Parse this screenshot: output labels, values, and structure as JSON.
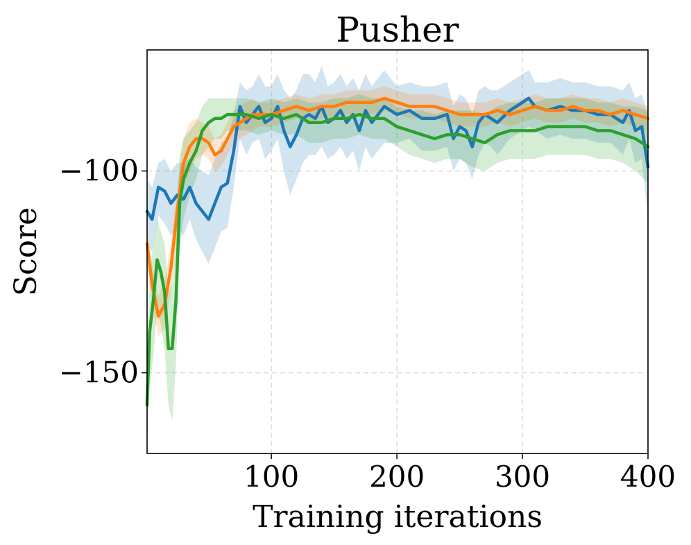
{
  "chart_data": {
    "type": "line",
    "title": "Pusher",
    "xlabel": "Training iterations",
    "ylabel": "Score",
    "xlim": [
      1,
      400
    ],
    "ylim": [
      -170,
      -70
    ],
    "xticks": [
      100,
      200,
      300,
      400
    ],
    "xtick_labels": [
      "100",
      "200",
      "300",
      "400"
    ],
    "yticks": [
      -100,
      -150
    ],
    "ytick_labels": [
      "−100",
      "−150"
    ],
    "grid": true,
    "legend": "none",
    "series": [
      {
        "name": "blue",
        "color": "#1f77b4",
        "x": [
          1,
          5,
          10,
          15,
          20,
          25,
          30,
          35,
          40,
          45,
          50,
          55,
          60,
          65,
          70,
          75,
          80,
          85,
          90,
          95,
          100,
          105,
          110,
          115,
          120,
          125,
          130,
          135,
          140,
          145,
          150,
          155,
          160,
          165,
          170,
          175,
          180,
          185,
          190,
          195,
          200,
          210,
          220,
          230,
          240,
          245,
          250,
          255,
          260,
          265,
          270,
          275,
          280,
          290,
          300,
          305,
          310,
          320,
          330,
          340,
          350,
          360,
          370,
          380,
          385,
          390,
          395,
          400
        ],
        "y": [
          -110,
          -112,
          -104,
          -105,
          -108,
          -106,
          -107,
          -104,
          -108,
          -110,
          -112,
          -108,
          -104,
          -103,
          -95,
          -84,
          -88,
          -86,
          -84,
          -88,
          -87,
          -84,
          -90,
          -94,
          -91,
          -87,
          -86,
          -87,
          -84,
          -88,
          -87,
          -85,
          -88,
          -86,
          -90,
          -85,
          -88,
          -86,
          -84,
          -85,
          -86,
          -85,
          -87,
          -87,
          -86,
          -92,
          -89,
          -90,
          -94,
          -88,
          -86,
          -87,
          -88,
          -85,
          -83,
          -82,
          -84,
          -85,
          -84,
          -85,
          -85,
          -86,
          -86,
          -88,
          -85,
          -90,
          -89,
          -99
        ],
        "band_upper": [
          -102,
          -104,
          -98,
          -97,
          -100,
          -98,
          -98,
          -97,
          -99,
          -100,
          -101,
          -97,
          -93,
          -92,
          -86,
          -78,
          -80,
          -79,
          -76,
          -79,
          -79,
          -76,
          -80,
          -82,
          -80,
          -76,
          -76,
          -78,
          -74,
          -79,
          -78,
          -76,
          -79,
          -77,
          -80,
          -76,
          -79,
          -77,
          -75,
          -77,
          -79,
          -78,
          -79,
          -79,
          -78,
          -84,
          -81,
          -82,
          -86,
          -80,
          -79,
          -80,
          -80,
          -78,
          -76,
          -75,
          -78,
          -78,
          -77,
          -78,
          -78,
          -79,
          -79,
          -80,
          -78,
          -82,
          -81,
          -86
        ],
        "band_lower": [
          -118,
          -120,
          -111,
          -113,
          -116,
          -114,
          -116,
          -112,
          -117,
          -120,
          -123,
          -119,
          -115,
          -114,
          -104,
          -92,
          -96,
          -93,
          -92,
          -97,
          -95,
          -92,
          -100,
          -106,
          -102,
          -98,
          -96,
          -96,
          -94,
          -97,
          -96,
          -94,
          -97,
          -95,
          -100,
          -94,
          -97,
          -95,
          -93,
          -93,
          -93,
          -92,
          -95,
          -95,
          -94,
          -100,
          -97,
          -98,
          -102,
          -96,
          -93,
          -94,
          -96,
          -92,
          -90,
          -89,
          -90,
          -92,
          -91,
          -92,
          -92,
          -93,
          -93,
          -96,
          -92,
          -98,
          -97,
          -112
        ]
      },
      {
        "name": "orange",
        "color": "#ff7f0e",
        "x": [
          1,
          5,
          10,
          15,
          20,
          25,
          30,
          35,
          40,
          45,
          50,
          55,
          60,
          65,
          70,
          75,
          80,
          85,
          90,
          100,
          110,
          120,
          130,
          140,
          150,
          160,
          170,
          180,
          190,
          200,
          210,
          220,
          230,
          240,
          250,
          260,
          270,
          280,
          290,
          300,
          310,
          320,
          330,
          340,
          350,
          360,
          370,
          380,
          390,
          400
        ],
        "y": [
          -118,
          -128,
          -136,
          -133,
          -124,
          -110,
          -98,
          -94,
          -92,
          -92,
          -93,
          -96,
          -95,
          -92,
          -89,
          -88,
          -87,
          -86,
          -86,
          -86,
          -85,
          -84,
          -85,
          -84,
          -84,
          -83,
          -83,
          -83,
          -82,
          -83,
          -84,
          -84,
          -84,
          -85,
          -86,
          -86,
          -86,
          -85,
          -86,
          -85,
          -84,
          -85,
          -85,
          -84,
          -85,
          -85,
          -86,
          -85,
          -86,
          -87
        ],
        "band_upper": [
          -114,
          -123,
          -131,
          -127,
          -118,
          -104,
          -92,
          -88,
          -87,
          -88,
          -89,
          -92,
          -91,
          -88,
          -85,
          -84,
          -83,
          -82,
          -83,
          -83,
          -82,
          -81,
          -82,
          -81,
          -81,
          -80,
          -80,
          -80,
          -79,
          -80,
          -81,
          -81,
          -81,
          -82,
          -83,
          -83,
          -83,
          -82,
          -83,
          -82,
          -81,
          -82,
          -82,
          -81,
          -82,
          -82,
          -83,
          -82,
          -83,
          -84
        ],
        "band_lower": [
          -122,
          -133,
          -141,
          -139,
          -130,
          -116,
          -104,
          -100,
          -97,
          -96,
          -97,
          -100,
          -99,
          -96,
          -93,
          -92,
          -91,
          -90,
          -89,
          -89,
          -88,
          -87,
          -88,
          -87,
          -87,
          -86,
          -86,
          -86,
          -85,
          -86,
          -87,
          -87,
          -87,
          -88,
          -89,
          -89,
          -89,
          -88,
          -89,
          -88,
          -87,
          -88,
          -88,
          -87,
          -88,
          -88,
          -89,
          -88,
          -89,
          -90
        ]
      },
      {
        "name": "green",
        "color": "#2ca02c",
        "x": [
          1,
          3,
          6,
          9,
          12,
          15,
          18,
          21,
          24,
          27,
          30,
          35,
          40,
          45,
          50,
          55,
          60,
          65,
          70,
          75,
          80,
          90,
          100,
          110,
          120,
          130,
          140,
          150,
          160,
          170,
          180,
          190,
          200,
          210,
          220,
          230,
          240,
          250,
          260,
          270,
          280,
          290,
          300,
          310,
          320,
          330,
          340,
          350,
          360,
          370,
          380,
          390,
          400
        ],
        "y": [
          -158,
          -140,
          -132,
          -122,
          -125,
          -130,
          -144,
          -144,
          -132,
          -108,
          -102,
          -98,
          -95,
          -90,
          -88,
          -87,
          -87,
          -86,
          -86,
          -86,
          -86,
          -87,
          -86,
          -87,
          -86,
          -88,
          -88,
          -87,
          -87,
          -86,
          -87,
          -87,
          -89,
          -90,
          -91,
          -92,
          -91,
          -91,
          -92,
          -93,
          -91,
          -90,
          -90,
          -90,
          -89,
          -89,
          -89,
          -89,
          -90,
          -90,
          -91,
          -92,
          -94
        ],
        "band_upper": [
          -148,
          -126,
          -118,
          -112,
          -115,
          -118,
          -130,
          -128,
          -117,
          -96,
          -92,
          -90,
          -88,
          -84,
          -82,
          -82,
          -82,
          -82,
          -82,
          -82,
          -82,
          -83,
          -82,
          -83,
          -82,
          -83,
          -83,
          -82,
          -82,
          -81,
          -82,
          -82,
          -84,
          -85,
          -85,
          -86,
          -85,
          -85,
          -85,
          -86,
          -84,
          -83,
          -83,
          -83,
          -82,
          -82,
          -82,
          -82,
          -83,
          -83,
          -84,
          -84,
          -85
        ],
        "band_lower": [
          -168,
          -154,
          -146,
          -134,
          -138,
          -144,
          -158,
          -162,
          -148,
          -120,
          -112,
          -106,
          -102,
          -96,
          -94,
          -92,
          -92,
          -90,
          -90,
          -90,
          -90,
          -91,
          -90,
          -91,
          -91,
          -93,
          -93,
          -92,
          -92,
          -91,
          -92,
          -92,
          -94,
          -96,
          -97,
          -98,
          -97,
          -97,
          -99,
          -100,
          -98,
          -97,
          -97,
          -97,
          -96,
          -96,
          -96,
          -96,
          -97,
          -97,
          -98,
          -100,
          -103
        ]
      }
    ]
  }
}
